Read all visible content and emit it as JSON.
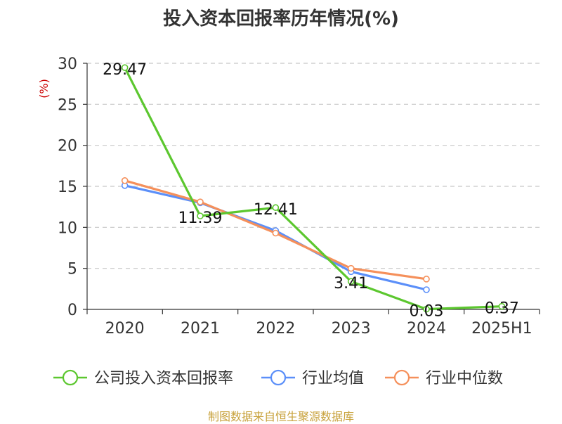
{
  "chart_data": {
    "type": "line",
    "title": "投入资本回报率历年情况(%)",
    "ylabel": "(%)",
    "xlabel": "",
    "categories": [
      "2020",
      "2021",
      "2022",
      "2023",
      "2024",
      "2025H1"
    ],
    "ylim": [
      0,
      30
    ],
    "yticks": [
      0,
      5,
      10,
      15,
      20,
      25,
      30
    ],
    "grid": true,
    "legend_position": "bottom",
    "series": [
      {
        "name": "公司投入资本回报率",
        "color": "#5cc72f",
        "values": [
          29.47,
          11.39,
          12.41,
          3.41,
          0.03,
          0.37
        ],
        "labels": [
          "29.47",
          "11.39",
          "12.41",
          "3.41",
          "0.03",
          "0.37"
        ]
      },
      {
        "name": "行业均值",
        "color": "#5b8ff9",
        "values": [
          15.1,
          13.0,
          9.6,
          4.6,
          2.4,
          null
        ]
      },
      {
        "name": "行业中位数",
        "color": "#f5905b",
        "values": [
          15.7,
          13.1,
          9.3,
          5.0,
          3.7,
          null
        ]
      }
    ]
  },
  "source_note": "制图数据来自恒生聚源数据库"
}
